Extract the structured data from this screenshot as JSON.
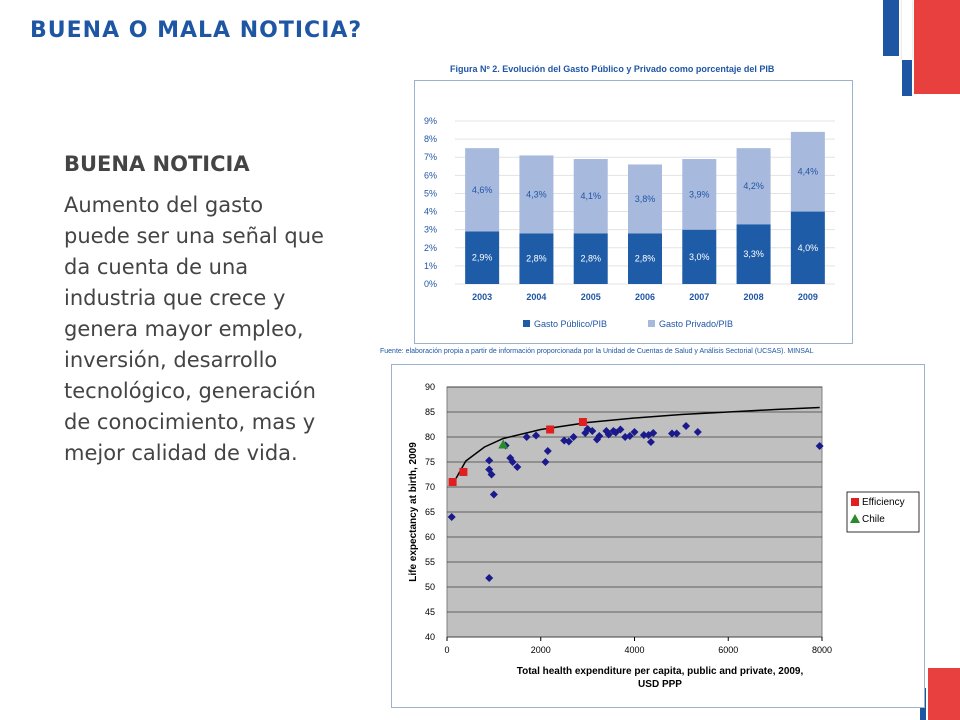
{
  "slide": {
    "title": "BUENA O MALA NOTICIA?",
    "heading": "BUENA NOTICIA",
    "body_lines": [
      "Aumento del gasto",
      "puede ser una señal que",
      "da cuenta  de una",
      "industria que crece y",
      "genera mayor  empleo,",
      "inversión, desarrollo",
      "tecnológico, generación",
      "de conocimiento, mas y",
      "mejor calidad de vida."
    ],
    "colors": {
      "title": "#1f56a4",
      "text": "#444444",
      "deco_blue": "#1f56a4",
      "deco_red": "#e8403f"
    }
  },
  "figure1": {
    "title": "Figura Nº 2. Evolución del Gasto Público y Privado como porcentaje del PIB",
    "source": "Fuente: elaboración propia a partir de información proporcionada por la Unidad de Cuentas de Salud y Análisis Sectorial (UCSAS). MINSAL"
  },
  "chart_data": [
    {
      "type": "bar",
      "stacked": true,
      "categories": [
        "2003",
        "2004",
        "2005",
        "2006",
        "2007",
        "2008",
        "2009"
      ],
      "series": [
        {
          "name": "Gasto Público/PIB",
          "values": [
            2.9,
            2.8,
            2.8,
            2.8,
            3.0,
            3.3,
            4.0
          ],
          "labels": [
            "2,9%",
            "2,8%",
            "2,8%",
            "2,8%",
            "3,0%",
            "3,3%",
            "4,0%"
          ],
          "color": "#1f5ca8"
        },
        {
          "name": "Gasto Privado/PIB",
          "values": [
            4.6,
            4.3,
            4.1,
            3.8,
            3.9,
            4.2,
            4.4
          ],
          "labels": [
            "4,6%",
            "4,3%",
            "4,1%",
            "3,8%",
            "3,9%",
            "4,2%",
            "4,4%"
          ],
          "color": "#a8b9de"
        }
      ],
      "ylim": [
        0,
        9
      ],
      "yticks": [
        "0%",
        "1%",
        "2%",
        "3%",
        "4%",
        "5%",
        "6%",
        "7%",
        "8%",
        "9%"
      ],
      "legend": "bottom"
    },
    {
      "type": "scatter",
      "xlabel": "Total health expenditure per capita, public and private, 2009, USD PPP",
      "ylabel": "Life expectancy at birth, 2009",
      "xlim": [
        0,
        8000
      ],
      "ylim": [
        40,
        90
      ],
      "xticks": [
        "0",
        "2000",
        "4000",
        "6000",
        "8000"
      ],
      "yticks": [
        "40",
        "45",
        "50",
        "55",
        "60",
        "65",
        "70",
        "75",
        "80",
        "85",
        "90"
      ],
      "grid": true,
      "background": "#c0c0c0",
      "legend": "right",
      "series": [
        {
          "marker": "diamond",
          "color": "#1a1a8c",
          "points": [
            [
              100,
              64
            ],
            [
              900,
              51.8
            ],
            [
              900,
              73.5
            ],
            [
              950,
              72.5
            ],
            [
              1000,
              68.5
            ],
            [
              900,
              75.3
            ],
            [
              1350,
              75.8
            ],
            [
              1400,
              75
            ],
            [
              1500,
              74
            ],
            [
              1250,
              78.3
            ],
            [
              1700,
              80
            ],
            [
              1900,
              80.3
            ],
            [
              2100,
              75
            ],
            [
              2150,
              77.2
            ],
            [
              2500,
              79.3
            ],
            [
              2600,
              79.1
            ],
            [
              2700,
              80
            ],
            [
              2950,
              80.8
            ],
            [
              3000,
              81.6
            ],
            [
              3100,
              81.2
            ],
            [
              3200,
              79.5
            ],
            [
              3250,
              80.2
            ],
            [
              3400,
              81.2
            ],
            [
              3450,
              80.5
            ],
            [
              3550,
              81.2
            ],
            [
              3600,
              80.9
            ],
            [
              3700,
              81.5
            ],
            [
              3800,
              80
            ],
            [
              3900,
              80.2
            ],
            [
              4000,
              81
            ],
            [
              4200,
              80.4
            ],
            [
              4300,
              80.4
            ],
            [
              4350,
              79
            ],
            [
              4400,
              80.8
            ],
            [
              4800,
              80.7
            ],
            [
              4900,
              80.7
            ],
            [
              5100,
              82.2
            ],
            [
              5350,
              81
            ],
            [
              7950,
              78.2
            ]
          ]
        },
        {
          "name": "Efficiency",
          "marker": "square",
          "color": "#e02020",
          "points": [
            [
              120,
              71
            ],
            [
              350,
              73
            ],
            [
              2200,
              81.5
            ],
            [
              2900,
              83
            ]
          ]
        },
        {
          "name": "Chile",
          "marker": "triangle",
          "color": "#2a8a2a",
          "points": [
            [
              1200,
              78.5
            ]
          ]
        }
      ],
      "trend_line": {
        "type": "logarithmic",
        "color": "#000000",
        "x": [
          150,
          400,
          800,
          1200,
          2000,
          3000,
          4000,
          5000,
          6000,
          7000,
          7950
        ],
        "y": [
          71,
          75.2,
          78,
          79.7,
          81.5,
          82.9,
          83.8,
          84.5,
          85,
          85.5,
          85.9
        ]
      }
    }
  ]
}
